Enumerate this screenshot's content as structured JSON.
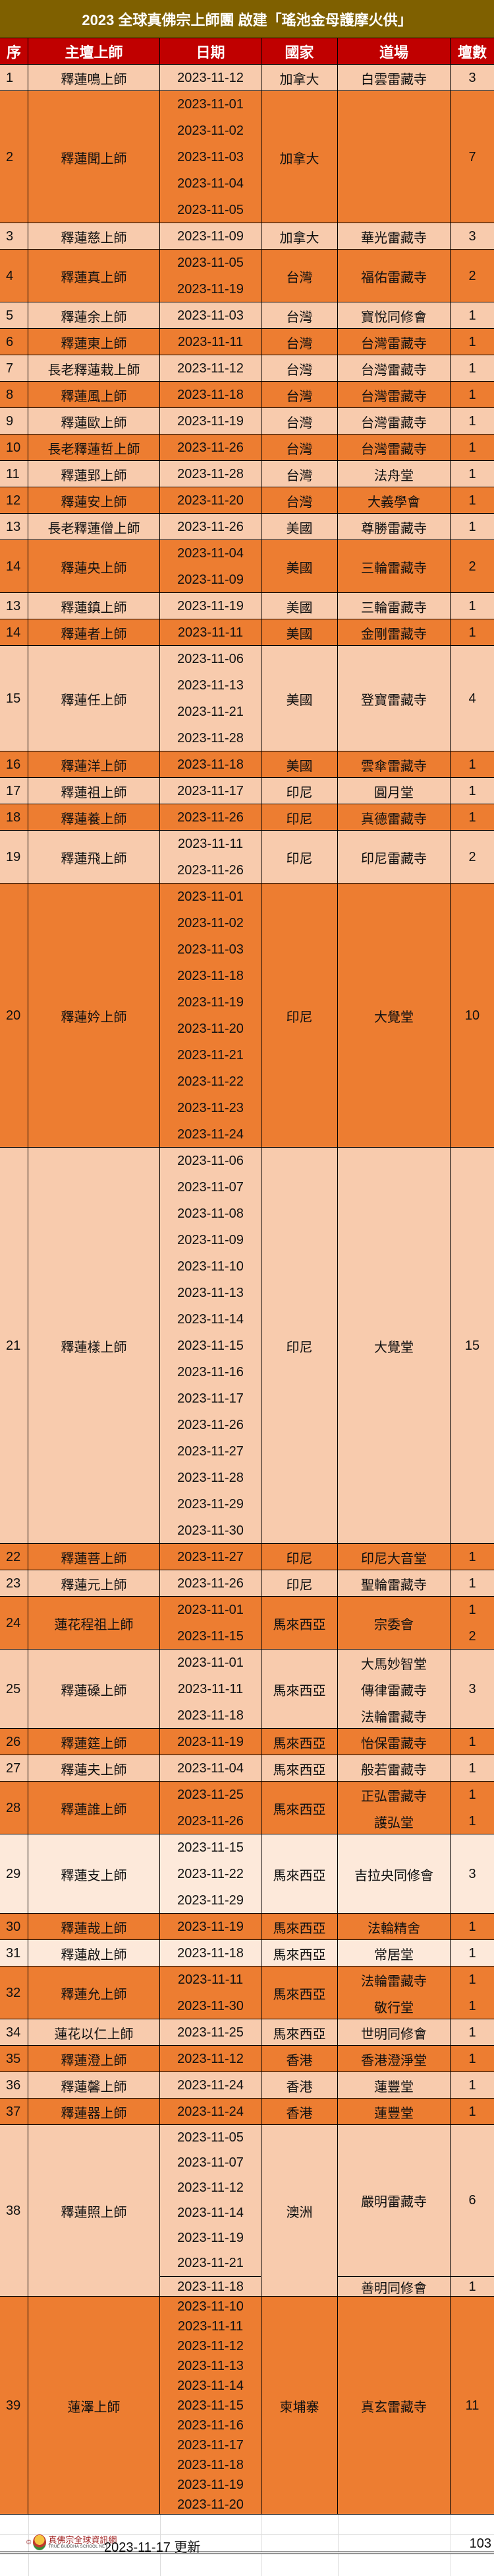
{
  "title": "2023 全球真佛宗上師團 啟建「瑤池金母護摩火供」",
  "colors": {
    "title_bg": "#7f6000",
    "header_bg": "#c00000",
    "dark": "#ed7d31",
    "light": "#f8cbad",
    "pale": "#fde9da"
  },
  "headers": [
    "序",
    "主壇上師",
    "日期",
    "國家",
    "道場",
    "壇數"
  ],
  "records": [
    {
      "seq": "1",
      "name": "釋蓮鳴上師",
      "dates": [
        "2023-11-12"
      ],
      "country": "加拿大",
      "venues": [
        "白雲雷藏寺"
      ],
      "counts": [
        "3"
      ],
      "tone": "light"
    },
    {
      "seq": "2",
      "name": "釋蓮聞上師",
      "dates": [
        "2023-11-01",
        "2023-11-02",
        "2023-11-03",
        "2023-11-04",
        "2023-11-05"
      ],
      "country": "加拿大",
      "venues": [],
      "counts": [
        "7"
      ],
      "tone": "dark"
    },
    {
      "seq": "3",
      "name": "釋蓮慈上師",
      "dates": [
        "2023-11-09"
      ],
      "country": "加拿大",
      "venues": [
        "華光雷藏寺"
      ],
      "counts": [
        "3"
      ],
      "tone": "light"
    },
    {
      "seq": "4",
      "name": "釋蓮真上師",
      "dates": [
        "2023-11-05",
        "2023-11-19"
      ],
      "country": "台灣",
      "venues": [
        "福佑雷藏寺"
      ],
      "counts": [
        "2"
      ],
      "tone": "dark"
    },
    {
      "seq": "5",
      "name": "釋蓮余上師",
      "dates": [
        "2023-11-03"
      ],
      "country": "台灣",
      "venues": [
        "寶悅同修會"
      ],
      "counts": [
        "1"
      ],
      "tone": "light"
    },
    {
      "seq": "6",
      "name": "釋蓮東上師",
      "dates": [
        "2023-11-11"
      ],
      "country": "台灣",
      "venues": [
        "台灣雷藏寺"
      ],
      "counts": [
        "1"
      ],
      "tone": "dark"
    },
    {
      "seq": "7",
      "name": "長老釋蓮栽上師",
      "dates": [
        "2023-11-12"
      ],
      "country": "台灣",
      "venues": [
        "台灣雷藏寺"
      ],
      "counts": [
        "1"
      ],
      "tone": "light"
    },
    {
      "seq": "8",
      "name": "釋蓮風上師",
      "dates": [
        "2023-11-18"
      ],
      "country": "台灣",
      "venues": [
        "台灣雷藏寺"
      ],
      "counts": [
        "1"
      ],
      "tone": "dark"
    },
    {
      "seq": "9",
      "name": "釋蓮歐上師",
      "dates": [
        "2023-11-19"
      ],
      "country": "台灣",
      "venues": [
        "台灣雷藏寺"
      ],
      "counts": [
        "1"
      ],
      "tone": "light"
    },
    {
      "seq": "10",
      "name": "長老釋蓮哲上師",
      "dates": [
        "2023-11-26"
      ],
      "country": "台灣",
      "venues": [
        "台灣雷藏寺"
      ],
      "counts": [
        "1"
      ],
      "tone": "dark"
    },
    {
      "seq": "11",
      "name": "釋蓮郢上師",
      "dates": [
        "2023-11-28"
      ],
      "country": "台灣",
      "venues": [
        "法舟堂"
      ],
      "counts": [
        "1"
      ],
      "tone": "light"
    },
    {
      "seq": "12",
      "name": "釋蓮安上師",
      "dates": [
        "2023-11-20"
      ],
      "country": "台灣",
      "venues": [
        "大義學會"
      ],
      "counts": [
        "1"
      ],
      "tone": "dark"
    },
    {
      "seq": "13",
      "name": "長老釋蓮僧上師",
      "dates": [
        "2023-11-26"
      ],
      "country": "美國",
      "venues": [
        "尊勝雷藏寺"
      ],
      "counts": [
        "1"
      ],
      "tone": "light"
    },
    {
      "seq": "14",
      "name": "釋蓮央上師",
      "dates": [
        "2023-11-04",
        "2023-11-09"
      ],
      "country": "美國",
      "venues": [
        "三輪雷藏寺"
      ],
      "counts": [
        "2"
      ],
      "tone": "dark"
    },
    {
      "seq": "13",
      "name": "釋蓮鎮上師",
      "dates": [
        "2023-11-19"
      ],
      "country": "美國",
      "venues": [
        "三輪雷藏寺"
      ],
      "counts": [
        "1"
      ],
      "tone": "light"
    },
    {
      "seq": "14",
      "name": "釋蓮者上師",
      "dates": [
        "2023-11-11"
      ],
      "country": "美國",
      "venues": [
        "金剛雷藏寺"
      ],
      "counts": [
        "1"
      ],
      "tone": "dark"
    },
    {
      "seq": "15",
      "name": "釋蓮任上師",
      "dates": [
        "2023-11-06",
        "2023-11-13",
        "2023-11-21",
        "2023-11-28"
      ],
      "country": "美國",
      "venues": [
        "登寶雷藏寺"
      ],
      "counts": [
        "4"
      ],
      "tone": "light"
    },
    {
      "seq": "16",
      "name": "釋蓮洋上師",
      "dates": [
        "2023-11-18"
      ],
      "country": "美國",
      "venues": [
        "雲傘雷藏寺"
      ],
      "counts": [
        "1"
      ],
      "tone": "dark"
    },
    {
      "seq": "17",
      "name": "釋蓮祖上師",
      "dates": [
        "2023-11-17"
      ],
      "country": "印尼",
      "venues": [
        "圓月堂"
      ],
      "counts": [
        "1"
      ],
      "tone": "light"
    },
    {
      "seq": "18",
      "name": "釋蓮養上師",
      "dates": [
        "2023-11-26"
      ],
      "country": "印尼",
      "venues": [
        "真德雷藏寺"
      ],
      "counts": [
        "1"
      ],
      "tone": "dark"
    },
    {
      "seq": "19",
      "name": "釋蓮飛上師",
      "dates": [
        "2023-11-11",
        "2023-11-26"
      ],
      "country": "印尼",
      "venues": [
        "印尼雷藏寺"
      ],
      "counts": [
        "2"
      ],
      "tone": "light"
    },
    {
      "seq": "20",
      "name": "釋蓮妗上師",
      "dates": [
        "2023-11-01",
        "2023-11-02",
        "2023-11-03",
        "2023-11-18",
        "2023-11-19",
        "2023-11-20",
        "2023-11-21",
        "2023-11-22",
        "2023-11-23",
        "2023-11-24"
      ],
      "country": "印尼",
      "venues": [
        "大覺堂"
      ],
      "counts": [
        "10"
      ],
      "tone": "dark"
    },
    {
      "seq": "21",
      "name": "釋蓮樣上師",
      "dates": [
        "2023-11-06",
        "2023-11-07",
        "2023-11-08",
        "2023-11-09",
        "2023-11-10",
        "2023-11-13",
        "2023-11-14",
        "2023-11-15",
        "2023-11-16",
        "2023-11-17",
        "2023-11-26",
        "2023-11-27",
        "2023-11-28",
        "2023-11-29",
        "2023-11-30"
      ],
      "country": "印尼",
      "venues": [
        "大覺堂"
      ],
      "counts": [
        "15"
      ],
      "tone": "light"
    },
    {
      "seq": "22",
      "name": "釋蓮菩上師",
      "dates": [
        "2023-11-27"
      ],
      "country": "印尼",
      "venues": [
        "印尼大音堂"
      ],
      "counts": [
        "1"
      ],
      "tone": "dark"
    },
    {
      "seq": "23",
      "name": "釋蓮元上師",
      "dates": [
        "2023-11-26"
      ],
      "country": "印尼",
      "venues": [
        "聖輪雷藏寺"
      ],
      "counts": [
        "1"
      ],
      "tone": "light"
    },
    {
      "seq": "24",
      "name": "蓮花程祖上師",
      "dates": [
        "2023-11-01",
        "2023-11-15"
      ],
      "country": "馬來西亞",
      "venues": [
        "宗委會"
      ],
      "counts": [
        "1",
        "2"
      ],
      "tone": "dark"
    },
    {
      "seq": "25",
      "name": "釋蓮磉上師",
      "dates": [
        "2023-11-01",
        "2023-11-11",
        "2023-11-18"
      ],
      "country": "馬來西亞",
      "venues": [
        "大馬妙智堂",
        "傳律雷藏寺",
        "法輪雷藏寺"
      ],
      "counts": [
        "3"
      ],
      "tone": "light"
    },
    {
      "seq": "26",
      "name": "釋蓮筳上師",
      "dates": [
        "2023-11-19"
      ],
      "country": "馬來西亞",
      "venues": [
        "怡保雷藏寺"
      ],
      "counts": [
        "1"
      ],
      "tone": "dark"
    },
    {
      "seq": "27",
      "name": "釋蓮夫上師",
      "dates": [
        "2023-11-04"
      ],
      "country": "馬來西亞",
      "venues": [
        "般若雷藏寺"
      ],
      "counts": [
        "1"
      ],
      "tone": "light"
    },
    {
      "seq": "28",
      "name": "釋蓮誰上師",
      "dates": [
        "2023-11-25",
        "2023-11-26"
      ],
      "country": "馬來西亞",
      "venues": [
        "正弘雷藏寺",
        "護弘堂"
      ],
      "counts": [
        "1",
        "1"
      ],
      "tone": "dark"
    },
    {
      "seq": "29",
      "name": "釋蓮支上師",
      "dates": [
        "2023-11-15",
        "2023-11-22",
        "2023-11-29"
      ],
      "country": "馬來西亞",
      "venues": [
        "吉拉央同修會"
      ],
      "counts": [
        "3"
      ],
      "tone": "pale"
    },
    {
      "seq": "30",
      "name": "釋蓮哉上師",
      "dates": [
        "2023-11-19"
      ],
      "country": "馬來西亞",
      "venues": [
        "法輪精舍"
      ],
      "counts": [
        "1"
      ],
      "tone": "dark"
    },
    {
      "seq": "31",
      "name": "釋蓮啟上師",
      "dates": [
        "2023-11-18"
      ],
      "country": "馬來西亞",
      "venues": [
        "常居堂"
      ],
      "counts": [
        "1"
      ],
      "tone": "pale"
    },
    {
      "seq": "32",
      "name": "釋蓮允上師",
      "dates": [
        "2023-11-11",
        "2023-11-30"
      ],
      "country": "馬來西亞",
      "venues": [
        "法輪雷藏寺",
        "敬行堂"
      ],
      "counts": [
        "1",
        "1"
      ],
      "tone": "dark"
    },
    {
      "seq": "34",
      "name": "蓮花以仁上師",
      "dates": [
        "2023-11-25"
      ],
      "country": "馬來西亞",
      "venues": [
        "世明同修會"
      ],
      "counts": [
        "1"
      ],
      "tone": "light"
    },
    {
      "seq": "35",
      "name": "釋蓮澄上師",
      "dates": [
        "2023-11-12"
      ],
      "country": "香港",
      "venues": [
        "香港澄淨堂"
      ],
      "counts": [
        "1"
      ],
      "tone": "dark"
    },
    {
      "seq": "36",
      "name": "釋蓮馨上師",
      "dates": [
        "2023-11-24"
      ],
      "country": "香港",
      "venues": [
        "蓮豐堂"
      ],
      "counts": [
        "1"
      ],
      "tone": "light"
    },
    {
      "seq": "37",
      "name": "釋蓮器上師",
      "dates": [
        "2023-11-24"
      ],
      "country": "香港",
      "venues": [
        "蓮豐堂"
      ],
      "counts": [
        "1"
      ],
      "tone": "dark"
    },
    {
      "seq": "38",
      "name": "釋蓮照上師",
      "country": "澳洲",
      "tone": "light",
      "groups": [
        {
          "dates": [
            "2023-11-05",
            "2023-11-07",
            "2023-11-12",
            "2023-11-14",
            "2023-11-19",
            "2023-11-21"
          ],
          "venue": "嚴明雷藏寺",
          "count": "6"
        },
        {
          "dates": [
            "2023-11-18"
          ],
          "venue": "善明同修會",
          "count": "1"
        }
      ]
    },
    {
      "seq": "39",
      "name": "蓮澤上師",
      "dates": [
        "2023-11-10",
        "2023-11-11",
        "2023-11-12",
        "2023-11-13",
        "2023-11-14",
        "2023-11-15",
        "2023-11-16",
        "2023-11-17",
        "2023-11-18",
        "2023-11-19",
        "2023-11-20"
      ],
      "country": "柬埔寨",
      "venues": [
        "真玄雷藏寺"
      ],
      "counts": [
        "11"
      ],
      "tone": "dark"
    }
  ],
  "footer": {
    "logo_zh": "真佛宗全球資訊網",
    "logo_en": "TRUE BUDDHA SCHOOL NET",
    "copyright": "©",
    "updated": "2023-11-17 更新",
    "total": "103"
  }
}
